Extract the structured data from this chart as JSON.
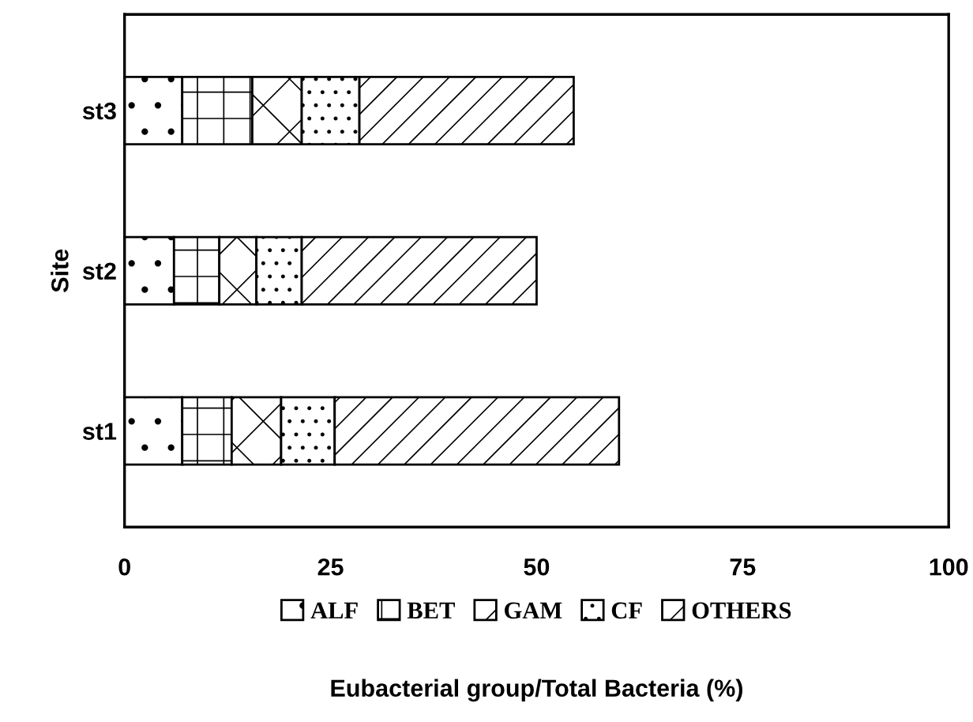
{
  "chart_data": {
    "type": "bar",
    "orientation": "horizontal",
    "stacked": true,
    "xlabel": "Eubacterial group/Total Bacteria (%)",
    "ylabel": "Site",
    "categories": [
      "st3",
      "st2",
      "st1"
    ],
    "series": [
      {
        "name": "ALF",
        "color": "#ffffff",
        "values": [
          7,
          6,
          7
        ]
      },
      {
        "name": "BET",
        "color": "#ffffff",
        "values": [
          8.5,
          5.5,
          6
        ]
      },
      {
        "name": "GAM",
        "color": "#ffffff",
        "values": [
          6,
          4.5,
          6
        ]
      },
      {
        "name": "CF",
        "color": "#ffffff",
        "values": [
          7,
          5.5,
          6.5
        ]
      },
      {
        "name": "OTHERS",
        "color": "#ffffff",
        "values": [
          26,
          28.5,
          34.5
        ]
      }
    ],
    "xlim": [
      0,
      100
    ],
    "xticks": [
      0,
      25,
      50,
      75,
      100
    ],
    "grid": false,
    "legend": "bottom"
  }
}
